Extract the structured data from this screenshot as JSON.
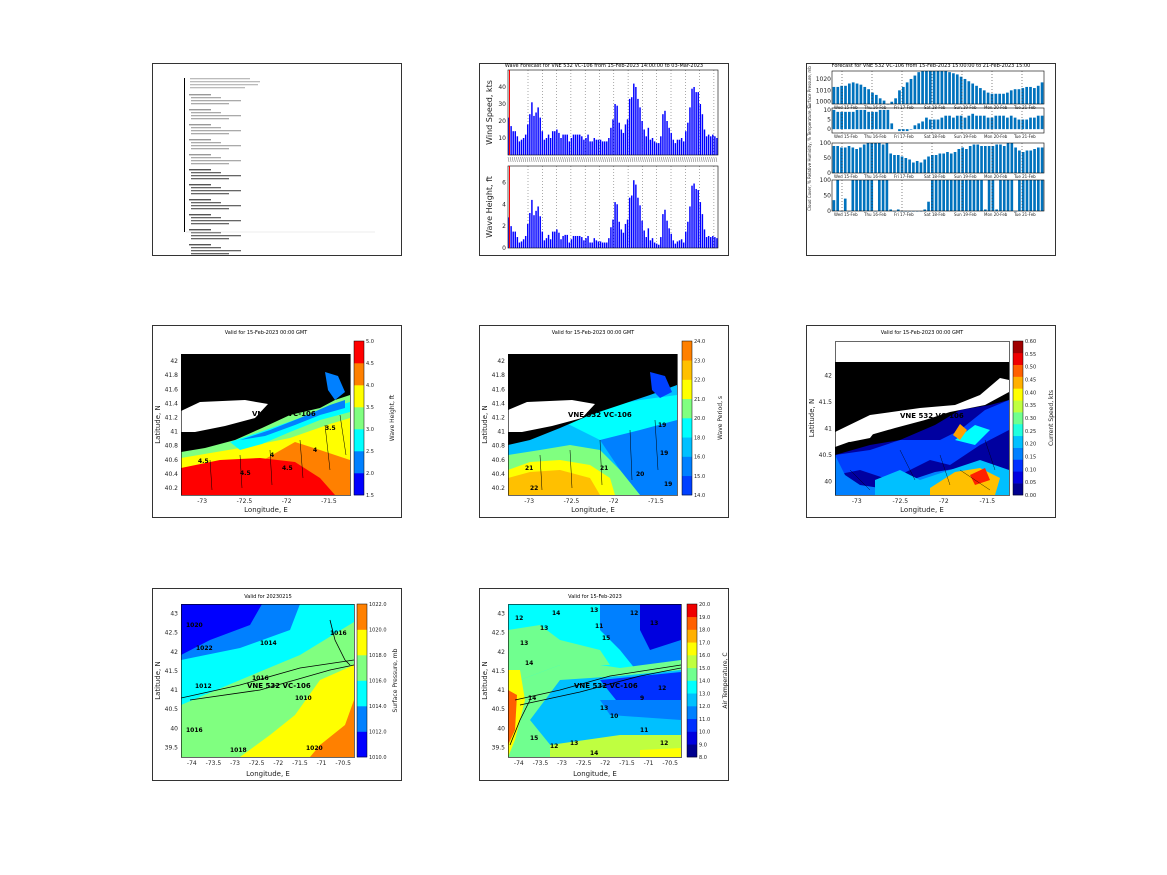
{
  "chart_data": [
    {
      "id": "wave-forecast",
      "type": "bar",
      "title": "Wave Forecast for VNE 532 VC-106 from 15-Feb-2023 14:00:00 to 03-Mar-2023",
      "color": "#0000ff",
      "marker_color": "#ff0000",
      "subplots": [
        {
          "ylabel": "Wind Speed, kts",
          "ylim": [
            0,
            50
          ],
          "yticks": [
            "10",
            "20",
            "30",
            "40"
          ],
          "values": [
            22,
            17,
            14,
            14,
            11,
            8,
            9,
            10,
            12,
            18,
            24,
            31,
            23,
            25,
            28,
            22,
            14,
            9,
            10,
            12,
            10,
            14,
            14,
            15,
            13,
            10,
            12,
            12,
            12,
            8,
            10,
            12,
            12,
            12,
            12,
            11,
            9,
            10,
            12,
            8,
            8,
            10,
            9,
            9,
            9,
            8,
            8,
            8,
            10,
            16,
            21,
            30,
            29,
            19,
            15,
            13,
            18,
            21,
            33,
            34,
            42,
            40,
            33,
            28,
            20,
            15,
            11,
            16,
            9,
            10,
            8,
            7,
            7,
            11,
            24,
            26,
            20,
            16,
            13,
            9,
            7,
            9,
            9,
            10,
            8,
            14,
            19,
            28,
            39,
            40,
            37,
            37,
            30,
            24,
            15,
            11,
            12,
            11,
            12,
            11,
            10
          ]
        },
        {
          "ylabel": "Wave Height, ft",
          "ylim": [
            0,
            7.5
          ],
          "yticks": [
            "0",
            "2",
            "4",
            "6"
          ],
          "values": [
            2.8,
            2.0,
            1.5,
            1.5,
            1.0,
            0.5,
            0.6,
            0.8,
            1.1,
            2.2,
            3.2,
            4.4,
            3.0,
            3.4,
            3.8,
            2.9,
            1.5,
            0.7,
            0.9,
            1.2,
            0.8,
            1.5,
            1.5,
            1.7,
            1.4,
            0.8,
            1.1,
            1.2,
            1.2,
            0.5,
            0.8,
            1.1,
            1.1,
            1.1,
            1.1,
            1.0,
            0.7,
            0.9,
            1.1,
            0.5,
            0.5,
            0.9,
            0.7,
            0.6,
            0.6,
            0.5,
            0.5,
            0.5,
            0.9,
            1.9,
            2.6,
            4.2,
            4.0,
            2.4,
            1.7,
            1.4,
            2.2,
            2.6,
            4.6,
            4.8,
            6.2,
            5.8,
            4.6,
            3.9,
            2.5,
            1.6,
            1.0,
            1.8,
            0.7,
            0.9,
            0.5,
            0.4,
            0.3,
            1.0,
            3.1,
            3.5,
            2.5,
            1.8,
            1.3,
            0.7,
            0.4,
            0.6,
            0.7,
            0.8,
            0.5,
            1.5,
            2.4,
            3.8,
            5.7,
            5.9,
            5.4,
            5.3,
            4.2,
            3.1,
            1.7,
            1.0,
            1.1,
            1.0,
            1.1,
            1.0,
            0.9
          ]
        }
      ]
    },
    {
      "id": "weather-forecast",
      "type": "bar",
      "title": "Forecast for VNE 532 VC-106 from 15-Feb-2023 15:00:00 to 21-Feb-2023 15:00",
      "color": "#0072bd",
      "day_labels": [
        "Wed 15-Feb",
        "Thu 16-Feb",
        "Fri 17-Feb",
        "Sat 18-Feb",
        "Sun 19-Feb",
        "Mon 20-Feb",
        "Tue 21-Feb"
      ],
      "subplots": [
        {
          "ylabel": "Surface Pressure, mb",
          "ylim": [
            998,
            1027
          ],
          "yticks": [
            "1000",
            "1010",
            "1020"
          ],
          "values": [
            1013,
            1013,
            1014,
            1014,
            1016,
            1017,
            1016,
            1015,
            1013,
            1011,
            1008,
            1006,
            1003,
            1001,
            998,
            1000,
            1003,
            1010,
            1013,
            1017,
            1020,
            1023,
            1026,
            1027,
            1027,
            1027,
            1027,
            1027,
            1027,
            1027,
            1026,
            1025,
            1024,
            1022,
            1020,
            1018,
            1016,
            1014,
            1012,
            1010,
            1008,
            1007,
            1007,
            1007,
            1007,
            1008,
            1010,
            1011,
            1011,
            1012,
            1013,
            1013,
            1012,
            1014,
            1017
          ]
        },
        {
          "ylabel": "Temperature, C",
          "ylim": [
            -2,
            11
          ],
          "yticks": [
            "0",
            "5",
            "10"
          ],
          "values": [
            10,
            9,
            9,
            9,
            9,
            9,
            10,
            10,
            10,
            9,
            9,
            9,
            10,
            10,
            10,
            3,
            null,
            -1,
            -1,
            -1,
            0,
            2,
            3,
            4,
            6,
            5,
            5,
            5,
            6,
            7,
            7,
            6,
            7,
            7,
            6,
            7,
            8,
            7,
            7,
            7,
            6,
            6,
            7,
            7,
            7,
            6,
            7,
            6,
            5,
            5,
            5,
            6,
            6,
            7,
            7
          ]
        },
        {
          "ylabel": "Relative Humidity, %",
          "ylim": [
            0,
            100
          ],
          "yticks": [
            "0",
            "50",
            "100"
          ],
          "values": [
            90,
            90,
            85,
            85,
            90,
            85,
            80,
            85,
            95,
            100,
            100,
            100,
            100,
            95,
            100,
            65,
            60,
            60,
            55,
            50,
            45,
            35,
            40,
            35,
            45,
            55,
            60,
            60,
            65,
            65,
            70,
            65,
            70,
            80,
            85,
            80,
            90,
            95,
            95,
            90,
            90,
            90,
            90,
            95,
            95,
            90,
            100,
            100,
            85,
            75,
            70,
            75,
            75,
            80,
            85,
            85
          ]
        },
        {
          "ylabel": "Cloud Cover, %",
          "ylim": [
            0,
            100
          ],
          "yticks": [
            "0",
            "50",
            "100"
          ],
          "values": [
            35,
            100,
            0,
            40,
            0,
            100,
            100,
            100,
            100,
            100,
            100,
            0,
            100,
            100,
            100,
            5,
            0,
            5,
            0,
            0,
            0,
            0,
            0,
            0,
            5,
            30,
            100,
            100,
            100,
            100,
            100,
            100,
            100,
            100,
            100,
            100,
            100,
            100,
            100,
            100,
            5,
            100,
            100,
            5,
            100,
            100,
            100,
            100,
            0,
            100,
            100,
            100,
            100,
            100,
            100,
            100
          ]
        }
      ]
    },
    {
      "id": "wave-height-map",
      "type": "heatmap",
      "title": "Valid for 15-Feb-2023 00:00 GMT",
      "xlabel": "Longitude, E",
      "ylabel": "Latitude, N",
      "xticks": [
        "-73",
        "-72.5",
        "-72",
        "-71.5"
      ],
      "yticks": [
        "42",
        "41.8",
        "41.6",
        "41.4",
        "41.2",
        "41",
        "40.8",
        "40.6",
        "40.4",
        "40.2"
      ],
      "colorbar": {
        "label": "Wave Height, ft",
        "ticks": [
          "1.5",
          "2.0",
          "2.5",
          "3.0",
          "3.5",
          "4.0",
          "4.5",
          "5.0"
        ],
        "colors": [
          "#0000ff",
          "#0080ff",
          "#00ffff",
          "#80ff80",
          "#ffff00",
          "#ff8000",
          "#ff0000"
        ]
      },
      "site_label": "VNE 532 VC-106",
      "contour_labels": [
        "4.5",
        "4",
        "3.5",
        "4.5",
        "4",
        "4.5"
      ]
    },
    {
      "id": "wave-period-map",
      "type": "heatmap",
      "title": "Valid for 15-Feb-2023 00:00 GMT",
      "xlabel": "Longitude, E",
      "ylabel": "Latitude, N",
      "xticks": [
        "-73",
        "-72.5",
        "-72",
        "-71.5"
      ],
      "yticks": [
        "42",
        "41.8",
        "41.6",
        "41.4",
        "41.2",
        "41",
        "40.8",
        "40.6",
        "40.4",
        "40.2"
      ],
      "colorbar": {
        "label": "Wave Period, s",
        "ticks": [
          "14.0",
          "15.0",
          "16.0",
          "18.0",
          "20.0",
          "21.0",
          "22.0",
          "23.0",
          "24.0"
        ],
        "colors": [
          "#0040ff",
          "#0080ff",
          "#00c0ff",
          "#00ffff",
          "#80ff80",
          "#ffff00",
          "#ffc000",
          "#ff8000"
        ]
      },
      "site_label": "VNE 532 VC-106",
      "contour_labels": [
        "19",
        "21",
        "22",
        "21",
        "20",
        "19",
        "19"
      ]
    },
    {
      "id": "current-speed-map",
      "type": "heatmap",
      "title": "Valid for 15-Feb-2023 00:00 GMT",
      "xlabel": "Longitude, E",
      "ylabel": "Latitude, N",
      "xticks": [
        "-73",
        "-72.5",
        "-72",
        "-71.5"
      ],
      "yticks": [
        "42",
        "41.5",
        "41",
        "40.5",
        "40"
      ],
      "colorbar": {
        "label": "Current Speed, kts",
        "ticks": [
          "0.00",
          "0.05",
          "0.10",
          "0.15",
          "0.20",
          "0.25",
          "0.30",
          "0.35",
          "0.40",
          "0.45",
          "0.50",
          "0.55",
          "0.60"
        ],
        "colors": [
          "#00008f",
          "#0000df",
          "#0030ff",
          "#0080ff",
          "#00c0ff",
          "#20ffdf",
          "#70ff8f",
          "#bfff40",
          "#ffff00",
          "#ffb000",
          "#ff6000",
          "#ef0000",
          "#a00000"
        ]
      },
      "site_label": "VNE 532 VC-106"
    },
    {
      "id": "surface-pressure-map",
      "type": "heatmap",
      "title": "Valid for 20230215",
      "xlabel": "Longitude, E",
      "ylabel": "Latitude, N",
      "xticks": [
        "-74",
        "-73.5",
        "-73",
        "-72.5",
        "-72",
        "-71.5",
        "-71",
        "-70.5"
      ],
      "yticks": [
        "43",
        "42.5",
        "42",
        "41.5",
        "41",
        "40.5",
        "40",
        "39.5"
      ],
      "colorbar": {
        "label": "Surface Pressure, mb",
        "ticks": [
          "1010.0",
          "1012.0",
          "1014.0",
          "1016.0",
          "1018.0",
          "1020.0",
          "1022.0"
        ],
        "colors": [
          "#0000ff",
          "#0080ff",
          "#00ffff",
          "#80ff80",
          "#ffff00",
          "#ff8000"
        ]
      },
      "site_label": "VNE 532 VC-106",
      "contour_labels": [
        "1020",
        "1022",
        "1014",
        "1016",
        "1012",
        "1016",
        "1010",
        "1016",
        "1018",
        "1020"
      ]
    },
    {
      "id": "air-temperature-map",
      "type": "heatmap",
      "title": "Valid for 15-Feb-2023",
      "xlabel": "Longitude, E",
      "ylabel": "Latitude, N",
      "xticks": [
        "-74",
        "-73.5",
        "-73",
        "-72.5",
        "-72",
        "-71.5",
        "-71",
        "-70.5"
      ],
      "yticks": [
        "43",
        "42.5",
        "42",
        "41.5",
        "41",
        "40.5",
        "40",
        "39.5"
      ],
      "colorbar": {
        "label": "Air Temperature, C",
        "ticks": [
          "8.0",
          "9.0",
          "10.0",
          "11.0",
          "12.0",
          "13.0",
          "14.0",
          "15.0",
          "16.0",
          "17.0",
          "18.0",
          "19.0",
          "20.0"
        ],
        "colors": [
          "#00008f",
          "#0000df",
          "#0030ff",
          "#0080ff",
          "#00c0ff",
          "#00ffff",
          "#70ff8f",
          "#bfff40",
          "#ffff00",
          "#ffb000",
          "#ff6000",
          "#ef0000"
        ]
      },
      "site_label": "VNE 532 VC-106",
      "contour_labels": [
        "12",
        "13",
        "14",
        "13",
        "11",
        "12",
        "13",
        "14",
        "15",
        "13",
        "12",
        "9",
        "10",
        "11",
        "12",
        "13",
        "14",
        "15",
        "12",
        "13",
        "14"
      ]
    }
  ]
}
